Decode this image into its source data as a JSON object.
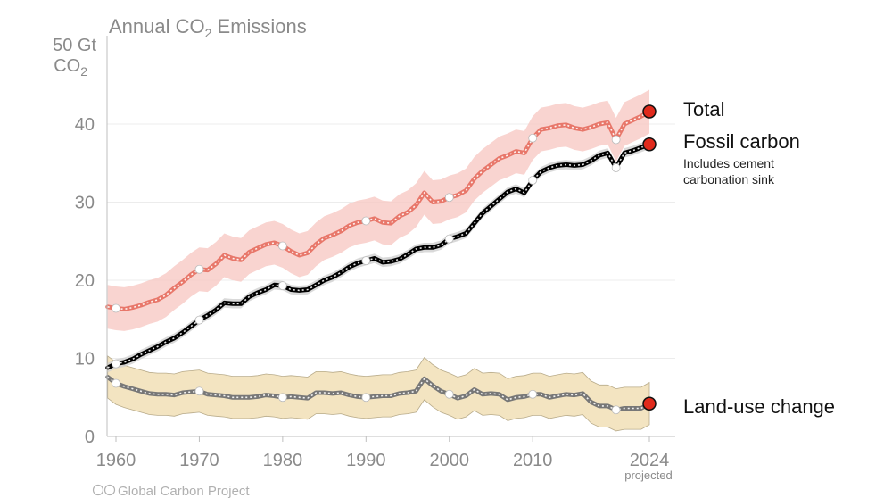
{
  "chart_data": {
    "type": "line",
    "title_prefix": "Annual CO",
    "title_sub": "2",
    "title_suffix": " Emissions",
    "y_unit_line1": "50 Gt",
    "y_unit_line2_prefix": "CO",
    "y_unit_line2_sub": "2",
    "ylim": [
      0,
      50
    ],
    "xlim": [
      1959,
      2024
    ],
    "y_ticks": [
      "0",
      "10",
      "20",
      "30",
      "40"
    ],
    "y_tick_values": [
      0,
      10,
      20,
      30,
      40
    ],
    "x_ticks": [
      "1960",
      "1970",
      "1980",
      "1990",
      "2000",
      "2010",
      "2024"
    ],
    "x_tick_values": [
      1960,
      1970,
      1980,
      1990,
      2000,
      2010,
      2024
    ],
    "x_note": "projected",
    "grid": true,
    "series": [
      {
        "name": "Total",
        "color": "#e8776a",
        "band_color": "#f8c9c4",
        "points": [
          [
            1959,
            16.6
          ],
          [
            1960,
            16.4
          ],
          [
            1961,
            16.3
          ],
          [
            1962,
            16.5
          ],
          [
            1963,
            16.8
          ],
          [
            1964,
            17.2
          ],
          [
            1965,
            17.5
          ],
          [
            1966,
            18.1
          ],
          [
            1967,
            19.0
          ],
          [
            1968,
            19.8
          ],
          [
            1969,
            20.7
          ],
          [
            1970,
            21.4
          ],
          [
            1971,
            21.3
          ],
          [
            1972,
            22.1
          ],
          [
            1973,
            23.2
          ],
          [
            1974,
            22.8
          ],
          [
            1975,
            22.6
          ],
          [
            1976,
            23.6
          ],
          [
            1977,
            24.1
          ],
          [
            1978,
            24.6
          ],
          [
            1979,
            24.8
          ],
          [
            1980,
            24.4
          ],
          [
            1981,
            23.7
          ],
          [
            1982,
            23.2
          ],
          [
            1983,
            23.5
          ],
          [
            1984,
            24.6
          ],
          [
            1985,
            25.4
          ],
          [
            1986,
            25.8
          ],
          [
            1987,
            26.3
          ],
          [
            1988,
            27.0
          ],
          [
            1989,
            27.4
          ],
          [
            1990,
            27.6
          ],
          [
            1991,
            27.9
          ],
          [
            1992,
            27.4
          ],
          [
            1993,
            27.3
          ],
          [
            1994,
            28.2
          ],
          [
            1995,
            28.7
          ],
          [
            1996,
            29.6
          ],
          [
            1997,
            31.2
          ],
          [
            1998,
            30.0
          ],
          [
            1999,
            30.1
          ],
          [
            2000,
            30.6
          ],
          [
            2001,
            30.9
          ],
          [
            2002,
            31.5
          ],
          [
            2003,
            33.0
          ],
          [
            2004,
            34.0
          ],
          [
            2005,
            34.8
          ],
          [
            2006,
            35.6
          ],
          [
            2007,
            36.0
          ],
          [
            2008,
            36.5
          ],
          [
            2009,
            36.3
          ],
          [
            2010,
            38.2
          ],
          [
            2011,
            39.3
          ],
          [
            2012,
            39.5
          ],
          [
            2013,
            39.8
          ],
          [
            2014,
            39.9
          ],
          [
            2015,
            39.5
          ],
          [
            2016,
            39.3
          ],
          [
            2017,
            39.6
          ],
          [
            2018,
            40.0
          ],
          [
            2019,
            40.2
          ],
          [
            2020,
            38.0
          ],
          [
            2021,
            40.0
          ],
          [
            2022,
            40.5
          ],
          [
            2023,
            41.0
          ],
          [
            2024,
            41.6
          ]
        ],
        "markers": [
          1960,
          1970,
          1980,
          1990,
          2000,
          2010,
          2020
        ],
        "label": "Total"
      },
      {
        "name": "Fossil carbon",
        "color": "#000000",
        "band_color": "#cfcfcf",
        "points": [
          [
            1959,
            8.8
          ],
          [
            1960,
            9.3
          ],
          [
            1961,
            9.5
          ],
          [
            1962,
            9.9
          ],
          [
            1963,
            10.5
          ],
          [
            1964,
            11.0
          ],
          [
            1965,
            11.5
          ],
          [
            1966,
            12.1
          ],
          [
            1967,
            12.6
          ],
          [
            1968,
            13.3
          ],
          [
            1969,
            14.1
          ],
          [
            1970,
            14.9
          ],
          [
            1971,
            15.5
          ],
          [
            1972,
            16.2
          ],
          [
            1973,
            17.1
          ],
          [
            1974,
            17.0
          ],
          [
            1975,
            17.0
          ],
          [
            1976,
            17.9
          ],
          [
            1977,
            18.4
          ],
          [
            1978,
            18.8
          ],
          [
            1979,
            19.4
          ],
          [
            1980,
            19.3
          ],
          [
            1981,
            18.8
          ],
          [
            1982,
            18.7
          ],
          [
            1983,
            18.8
          ],
          [
            1984,
            19.4
          ],
          [
            1985,
            20.0
          ],
          [
            1986,
            20.4
          ],
          [
            1987,
            21.0
          ],
          [
            1988,
            21.7
          ],
          [
            1989,
            22.2
          ],
          [
            1990,
            22.5
          ],
          [
            1991,
            22.8
          ],
          [
            1992,
            22.3
          ],
          [
            1993,
            22.4
          ],
          [
            1994,
            22.7
          ],
          [
            1995,
            23.3
          ],
          [
            1996,
            24.0
          ],
          [
            1997,
            24.2
          ],
          [
            1998,
            24.2
          ],
          [
            1999,
            24.5
          ],
          [
            2000,
            25.3
          ],
          [
            2001,
            25.6
          ],
          [
            2002,
            26.0
          ],
          [
            2003,
            27.3
          ],
          [
            2004,
            28.6
          ],
          [
            2005,
            29.5
          ],
          [
            2006,
            30.4
          ],
          [
            2007,
            31.3
          ],
          [
            2008,
            31.7
          ],
          [
            2009,
            31.2
          ],
          [
            2010,
            32.8
          ],
          [
            2011,
            33.9
          ],
          [
            2012,
            34.4
          ],
          [
            2013,
            34.7
          ],
          [
            2014,
            34.8
          ],
          [
            2015,
            34.7
          ],
          [
            2016,
            34.8
          ],
          [
            2017,
            35.3
          ],
          [
            2018,
            36.0
          ],
          [
            2019,
            36.3
          ],
          [
            2020,
            34.4
          ],
          [
            2021,
            36.3
          ],
          [
            2022,
            36.6
          ],
          [
            2023,
            37.0
          ],
          [
            2024,
            37.4
          ]
        ],
        "markers": [
          1960,
          1970,
          1980,
          1990,
          2000,
          2010,
          2020
        ],
        "label": "Fossil carbon",
        "sublabel_line1": "Includes cement",
        "sublabel_line2": "carbonation sink"
      },
      {
        "name": "Land-use change",
        "color": "#777777",
        "band_color": "#f1dfb6",
        "points": [
          [
            1959,
            7.6
          ],
          [
            1960,
            6.8
          ],
          [
            1961,
            6.4
          ],
          [
            1962,
            6.1
          ],
          [
            1963,
            5.8
          ],
          [
            1964,
            5.5
          ],
          [
            1965,
            5.4
          ],
          [
            1966,
            5.4
          ],
          [
            1967,
            5.3
          ],
          [
            1968,
            5.6
          ],
          [
            1969,
            5.7
          ],
          [
            1970,
            5.8
          ],
          [
            1971,
            5.4
          ],
          [
            1972,
            5.3
          ],
          [
            1973,
            5.2
          ],
          [
            1974,
            5.0
          ],
          [
            1975,
            5.0
          ],
          [
            1976,
            5.0
          ],
          [
            1977,
            5.1
          ],
          [
            1978,
            5.3
          ],
          [
            1979,
            5.2
          ],
          [
            1980,
            5.0
          ],
          [
            1981,
            5.1
          ],
          [
            1982,
            5.0
          ],
          [
            1983,
            4.9
          ],
          [
            1984,
            5.6
          ],
          [
            1985,
            5.6
          ],
          [
            1986,
            5.5
          ],
          [
            1987,
            5.6
          ],
          [
            1988,
            5.3
          ],
          [
            1989,
            5.1
          ],
          [
            1990,
            5.0
          ],
          [
            1991,
            5.1
          ],
          [
            1992,
            5.2
          ],
          [
            1993,
            5.2
          ],
          [
            1994,
            5.5
          ],
          [
            1995,
            5.6
          ],
          [
            1996,
            5.8
          ],
          [
            1997,
            7.4
          ],
          [
            1998,
            6.5
          ],
          [
            1999,
            5.8
          ],
          [
            2000,
            5.4
          ],
          [
            2001,
            4.9
          ],
          [
            2002,
            5.2
          ],
          [
            2003,
            6.0
          ],
          [
            2004,
            5.4
          ],
          [
            2005,
            5.5
          ],
          [
            2006,
            5.4
          ],
          [
            2007,
            4.7
          ],
          [
            2008,
            5.0
          ],
          [
            2009,
            5.1
          ],
          [
            2010,
            5.4
          ],
          [
            2011,
            5.4
          ],
          [
            2012,
            5.0
          ],
          [
            2013,
            5.2
          ],
          [
            2014,
            5.4
          ],
          [
            2015,
            5.3
          ],
          [
            2016,
            5.5
          ],
          [
            2017,
            4.4
          ],
          [
            2018,
            3.9
          ],
          [
            2019,
            3.9
          ],
          [
            2020,
            3.4
          ],
          [
            2021,
            3.6
          ],
          [
            2022,
            3.6
          ],
          [
            2023,
            3.6
          ],
          [
            2024,
            4.2
          ]
        ],
        "markers": [
          1960,
          1970,
          1980,
          1990,
          2000,
          2010,
          2020
        ],
        "label": "Land-use change"
      }
    ],
    "uncertainty": {
      "Total": 2.8,
      "Fossil carbon": 0.6,
      "Land-use change": 2.7
    },
    "endpoint_color": "#e02a1c"
  },
  "credit": "Global Carbon Project",
  "credit_icon": "creative-commons-icon"
}
